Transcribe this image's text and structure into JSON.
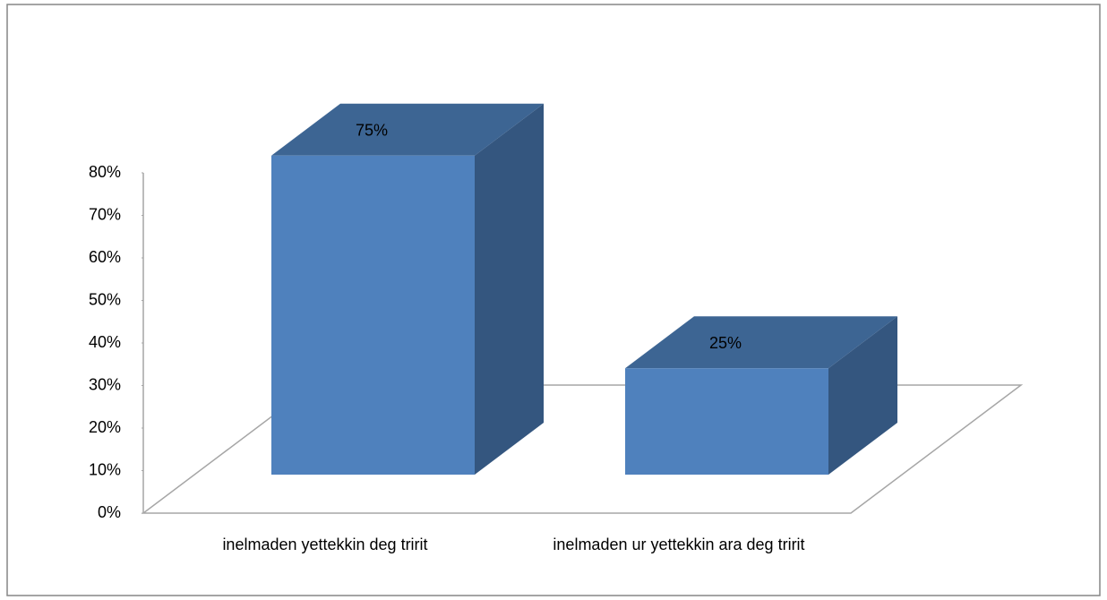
{
  "chart_data": {
    "type": "bar3d",
    "categories": [
      "inelmaden yettekkin deg tririt",
      "inelmaden ur yettekkin ara deg tririt"
    ],
    "values": [
      75,
      25
    ],
    "value_labels": [
      "75%",
      "25%"
    ],
    "color": "#4f81bd",
    "ylim": [
      0,
      80
    ],
    "yticks": [
      {
        "value": 0,
        "label": "0%"
      },
      {
        "value": 10,
        "label": "10%"
      },
      {
        "value": 20,
        "label": "20%"
      },
      {
        "value": 30,
        "label": "30%"
      },
      {
        "value": 40,
        "label": "40%"
      },
      {
        "value": 50,
        "label": "50%"
      },
      {
        "value": 60,
        "label": "60%"
      },
      {
        "value": 70,
        "label": "70%"
      },
      {
        "value": 80,
        "label": "80%"
      }
    ]
  }
}
